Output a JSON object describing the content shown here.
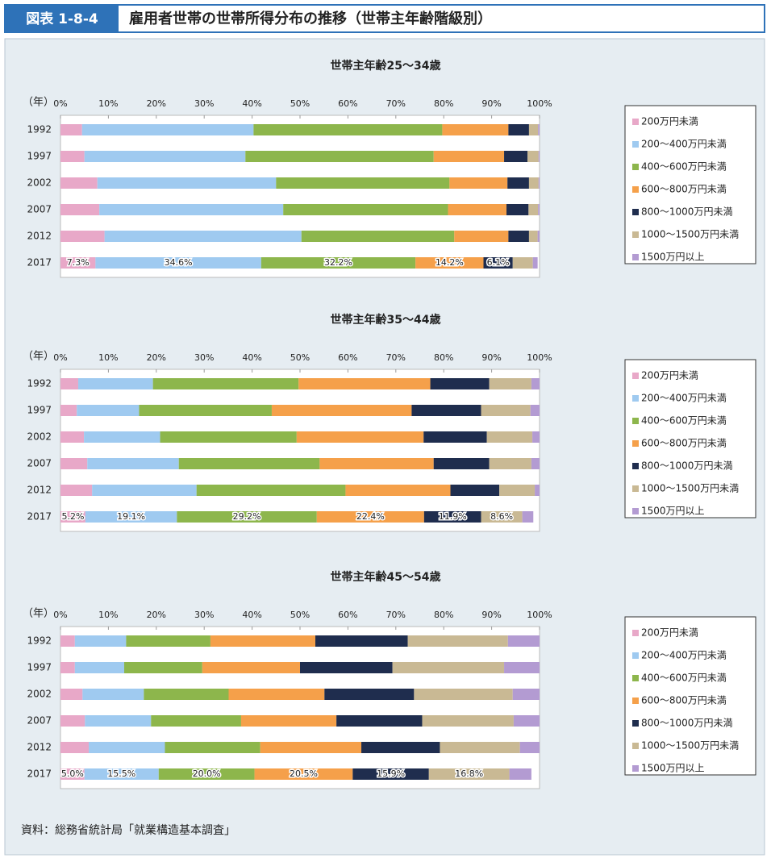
{
  "header": {
    "label": "図表 1-8-4",
    "title": "雇用者世帯の世帯所得分布の推移（世帯主年齢階級別）"
  },
  "source": "資料：総務省統計局「就業構造基本調査」",
  "chart_data": [
    {
      "type": "bar",
      "orientation": "horizontal",
      "stacked": true,
      "title": "世帯主年齢25～34歳",
      "y_label": "（年）",
      "categories": [
        "1992",
        "1997",
        "2002",
        "2007",
        "2012",
        "2017"
      ],
      "xlim": [
        0,
        100
      ],
      "xticks": [
        {
          "value": 0,
          "label": "0%"
        },
        {
          "value": 10,
          "label": "10%"
        },
        {
          "value": 20,
          "label": "20%"
        },
        {
          "value": 30,
          "label": "30%"
        },
        {
          "value": 40,
          "label": "40%"
        },
        {
          "value": 50,
          "label": "50%"
        },
        {
          "value": 60,
          "label": "60%"
        },
        {
          "value": 70,
          "label": "70%"
        },
        {
          "value": 80,
          "label": "80%"
        },
        {
          "value": 90,
          "label": "90%"
        },
        {
          "value": 100,
          "label": "100%"
        }
      ],
      "series": [
        {
          "name": "200万円未満",
          "color": "#e8a8c8",
          "values": [
            4.5,
            5.0,
            7.7,
            8.1,
            9.2,
            7.3
          ],
          "value_labels": [
            null,
            null,
            null,
            null,
            null,
            "7.3%"
          ]
        },
        {
          "name": "200～400万円未満",
          "color": "#9fcaf0",
          "values": [
            35.8,
            33.6,
            37.3,
            38.4,
            41.1,
            34.6
          ],
          "value_labels": [
            null,
            null,
            null,
            null,
            null,
            "34.6%"
          ]
        },
        {
          "name": "400～600万円未満",
          "color": "#8db64c",
          "values": [
            39.4,
            39.3,
            36.2,
            34.4,
            31.9,
            32.2
          ],
          "value_labels": [
            null,
            null,
            null,
            null,
            null,
            "32.2%"
          ]
        },
        {
          "name": "600～800万円未満",
          "color": "#f5a04a",
          "values": [
            13.8,
            14.7,
            12.1,
            12.2,
            11.3,
            14.2
          ],
          "value_labels": [
            null,
            null,
            null,
            null,
            null,
            "14.2%"
          ]
        },
        {
          "name": "800～1000万円未満",
          "color": "#1f2d4e",
          "values": [
            4.3,
            4.9,
            4.5,
            4.6,
            4.3,
            6.1
          ],
          "value_labels": [
            null,
            null,
            null,
            null,
            null,
            "6.1%"
          ]
        },
        {
          "name": "1000～1500万円未満",
          "color": "#c9b994",
          "values": [
            1.9,
            2.3,
            2.0,
            2.0,
            1.8,
            4.2
          ],
          "value_labels": [
            null,
            null,
            null,
            null,
            null,
            null
          ]
        },
        {
          "name": "1500万円以上",
          "color": "#b39bd2",
          "values": [
            0.3,
            0.2,
            0.2,
            0.3,
            0.4,
            1.0
          ],
          "value_labels": [
            null,
            null,
            null,
            null,
            null,
            null
          ]
        }
      ]
    },
    {
      "type": "bar",
      "orientation": "horizontal",
      "stacked": true,
      "title": "世帯主年齢35～44歳",
      "y_label": "（年）",
      "categories": [
        "1992",
        "1997",
        "2002",
        "2007",
        "2012",
        "2017"
      ],
      "xlim": [
        0,
        100
      ],
      "xticks": [
        {
          "value": 0,
          "label": "0%"
        },
        {
          "value": 10,
          "label": "10%"
        },
        {
          "value": 20,
          "label": "20%"
        },
        {
          "value": 30,
          "label": "30%"
        },
        {
          "value": 40,
          "label": "40%"
        },
        {
          "value": 50,
          "label": "50%"
        },
        {
          "value": 60,
          "label": "60%"
        },
        {
          "value": 70,
          "label": "70%"
        },
        {
          "value": 80,
          "label": "80%"
        },
        {
          "value": 90,
          "label": "90%"
        },
        {
          "value": 100,
          "label": "100%"
        }
      ],
      "series": [
        {
          "name": "200万円未満",
          "color": "#e8a8c8",
          "values": [
            3.7,
            3.4,
            4.9,
            5.6,
            6.6,
            5.2
          ],
          "value_labels": [
            null,
            null,
            null,
            null,
            null,
            "5.2%"
          ]
        },
        {
          "name": "200～400万円未満",
          "color": "#9fcaf0",
          "values": [
            15.6,
            13.0,
            15.9,
            19.1,
            21.8,
            19.1
          ],
          "value_labels": [
            null,
            null,
            null,
            null,
            null,
            "19.1%"
          ]
        },
        {
          "name": "400～600万円未満",
          "color": "#8db64c",
          "values": [
            30.4,
            27.7,
            28.5,
            29.4,
            31.1,
            29.2
          ],
          "value_labels": [
            null,
            null,
            null,
            null,
            null,
            "29.2%"
          ]
        },
        {
          "name": "600～800万円未満",
          "color": "#f5a04a",
          "values": [
            27.5,
            29.2,
            26.5,
            23.8,
            21.9,
            22.4
          ],
          "value_labels": [
            null,
            null,
            null,
            null,
            null,
            "22.4%"
          ]
        },
        {
          "name": "800～1000万円未満",
          "color": "#1f2d4e",
          "values": [
            12.3,
            14.5,
            13.2,
            11.6,
            10.2,
            11.9
          ],
          "value_labels": [
            null,
            null,
            null,
            null,
            null,
            "11.9%"
          ]
        },
        {
          "name": "1000～1500万円未満",
          "color": "#c9b994",
          "values": [
            8.8,
            10.3,
            9.5,
            8.8,
            7.4,
            8.6
          ],
          "value_labels": [
            null,
            null,
            null,
            null,
            null,
            "8.6%"
          ]
        },
        {
          "name": "1500万円以上",
          "color": "#b39bd2",
          "values": [
            1.7,
            1.9,
            1.5,
            1.7,
            1.0,
            2.3
          ],
          "value_labels": [
            null,
            null,
            null,
            null,
            null,
            null
          ]
        }
      ]
    },
    {
      "type": "bar",
      "orientation": "horizontal",
      "stacked": true,
      "title": "世帯主年齢45～54歳",
      "y_label": "（年）",
      "categories": [
        "1992",
        "1997",
        "2002",
        "2007",
        "2012",
        "2017"
      ],
      "xlim": [
        0,
        100
      ],
      "xticks": [
        {
          "value": 0,
          "label": "0%"
        },
        {
          "value": 10,
          "label": "10%"
        },
        {
          "value": 20,
          "label": "20%"
        },
        {
          "value": 30,
          "label": "30%"
        },
        {
          "value": 40,
          "label": "40%"
        },
        {
          "value": 50,
          "label": "50%"
        },
        {
          "value": 60,
          "label": "60%"
        },
        {
          "value": 70,
          "label": "70%"
        },
        {
          "value": 80,
          "label": "80%"
        },
        {
          "value": 90,
          "label": "90%"
        },
        {
          "value": 100,
          "label": "100%"
        }
      ],
      "series": [
        {
          "name": "200万円未満",
          "color": "#e8a8c8",
          "values": [
            3.0,
            3.0,
            4.6,
            5.1,
            5.9,
            5.0
          ],
          "value_labels": [
            null,
            null,
            null,
            null,
            null,
            "5.0%"
          ]
        },
        {
          "name": "200～400万円未満",
          "color": "#9fcaf0",
          "values": [
            10.7,
            10.3,
            12.8,
            13.8,
            15.9,
            15.5
          ],
          "value_labels": [
            null,
            null,
            null,
            null,
            null,
            "15.5%"
          ]
        },
        {
          "name": "400～600万円未満",
          "color": "#8db64c",
          "values": [
            17.6,
            16.3,
            17.7,
            18.8,
            19.9,
            20.0
          ],
          "value_labels": [
            null,
            null,
            null,
            null,
            null,
            "20.0%"
          ]
        },
        {
          "name": "600～800万円未満",
          "color": "#f5a04a",
          "values": [
            21.9,
            20.4,
            20.0,
            19.9,
            21.1,
            20.5
          ],
          "value_labels": [
            null,
            null,
            null,
            null,
            null,
            "20.5%"
          ]
        },
        {
          "name": "800～1000万円未満",
          "color": "#1f2d4e",
          "values": [
            19.3,
            19.3,
            18.7,
            17.9,
            16.4,
            15.9
          ],
          "value_labels": [
            null,
            null,
            null,
            null,
            null,
            "15.9%"
          ]
        },
        {
          "name": "1000～1500万円未満",
          "color": "#c9b994",
          "values": [
            20.9,
            23.3,
            20.6,
            19.1,
            16.7,
            16.8
          ],
          "value_labels": [
            null,
            null,
            null,
            null,
            null,
            "16.8%"
          ]
        },
        {
          "name": "1500万円以上",
          "color": "#b39bd2",
          "values": [
            6.6,
            7.4,
            5.6,
            5.4,
            4.1,
            4.6
          ],
          "value_labels": [
            null,
            null,
            null,
            null,
            null,
            null
          ]
        }
      ]
    }
  ]
}
